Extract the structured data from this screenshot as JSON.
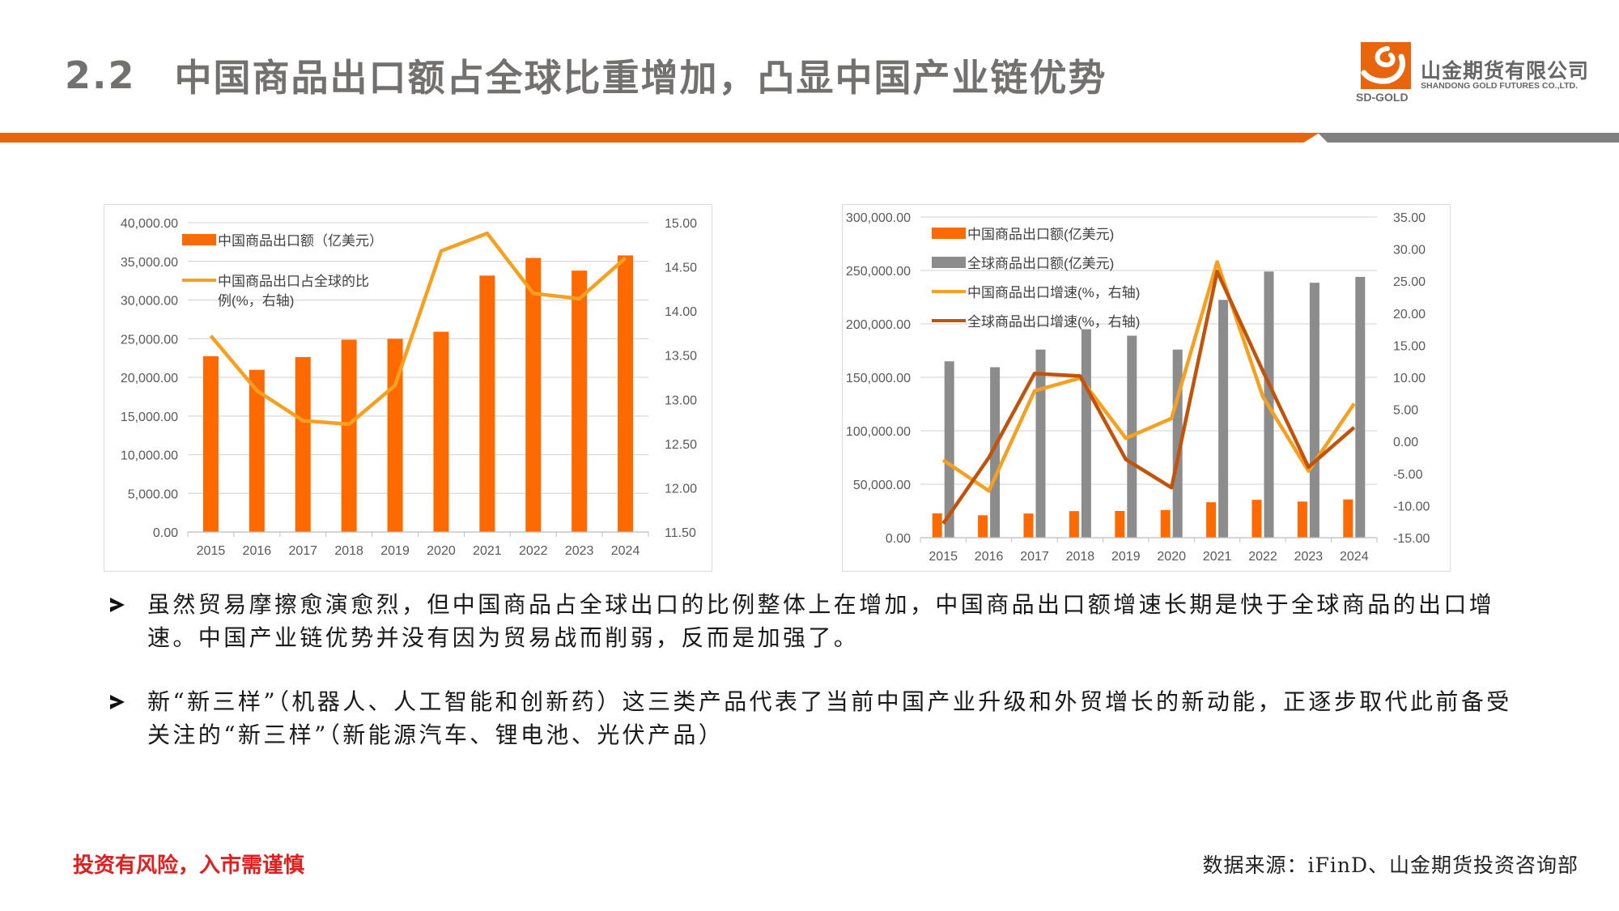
{
  "header": {
    "section_number": "2.2",
    "title": "中国商品出口额占全球比重增加，凸显中国产业链优势"
  },
  "logo": {
    "cn_name": "山金期货有限公司",
    "en_name": "SHANDONG GOLD FUTURES CO.,LTD.",
    "short_name": "SD-GOLD"
  },
  "colors": {
    "brand_orange": "#e8650e",
    "band_gray": "#808080",
    "bar_orange": "#ff6a00",
    "bar_gray": "#8c8c8c",
    "line_light_orange": "#f5a020",
    "line_dark_orange": "#c0540c",
    "risk_red": "#e02020"
  },
  "chart_data": [
    {
      "type": "bar+line",
      "title": "",
      "categories": [
        "2015",
        "2016",
        "2017",
        "2018",
        "2019",
        "2020",
        "2021",
        "2022",
        "2023",
        "2024"
      ],
      "series": [
        {
          "name": "中国商品出口额（亿美元）",
          "type": "bar",
          "axis": "left",
          "color": "#ff6a00",
          "values": [
            22735,
            20976,
            22633,
            24874,
            24990,
            25900,
            33160,
            35440,
            33800,
            35770
          ]
        },
        {
          "name": "中国商品出口占全球的比例(%，右轴)",
          "type": "line",
          "axis": "right",
          "color": "#f5a020",
          "values": [
            13.72,
            13.1,
            12.76,
            12.72,
            13.16,
            14.68,
            14.88,
            14.2,
            14.14,
            14.6
          ]
        }
      ],
      "left_axis": {
        "min": 0,
        "max": 40000,
        "step": 5000,
        "ticks": [
          "0.00",
          "5,000.00",
          "10,000.00",
          "15,000.00",
          "20,000.00",
          "25,000.00",
          "30,000.00",
          "35,000.00",
          "40,000.00"
        ]
      },
      "right_axis": {
        "min": 11.5,
        "max": 15.0,
        "step": 0.5,
        "ticks": [
          "11.50",
          "12.00",
          "12.50",
          "13.00",
          "13.50",
          "14.00",
          "14.50",
          "15.00"
        ]
      },
      "grid": true,
      "legend_position": "top-left inside"
    },
    {
      "type": "bar+line",
      "title": "",
      "categories": [
        "2015",
        "2016",
        "2017",
        "2018",
        "2019",
        "2020",
        "2021",
        "2022",
        "2023",
        "2024"
      ],
      "series": [
        {
          "name": "中国商品出口额(亿美元)",
          "type": "bar",
          "axis": "left",
          "color": "#ff6a00",
          "values": [
            22735,
            20976,
            22633,
            24874,
            24990,
            25900,
            33160,
            35440,
            33800,
            35770
          ]
        },
        {
          "name": "全球商品出口额(亿美元)",
          "type": "bar",
          "axis": "left",
          "color": "#8c8c8c",
          "values": [
            165000,
            159500,
            176000,
            195000,
            189000,
            176000,
            222500,
            249000,
            238500,
            244000
          ]
        },
        {
          "name": "中国商品出口增速(%，右轴)",
          "type": "line",
          "axis": "right",
          "color": "#f5a020",
          "values": [
            -2.9,
            -7.7,
            7.9,
            9.9,
            0.5,
            3.6,
            28.0,
            7.0,
            -4.6,
            5.9
          ]
        },
        {
          "name": "全球商品出口增速(%，右轴)",
          "type": "line",
          "axis": "right",
          "color": "#c0540c",
          "values": [
            -12.8,
            -2.5,
            10.6,
            10.2,
            -2.8,
            -7.2,
            26.5,
            11.0,
            -4.0,
            2.2
          ]
        }
      ],
      "left_axis": {
        "min": 0,
        "max": 300000,
        "step": 50000,
        "ticks": [
          "0.00",
          "50,000.00",
          "100,000.00",
          "150,000.00",
          "200,000.00",
          "250,000.00",
          "300,000.00"
        ]
      },
      "right_axis": {
        "min": -15,
        "max": 35,
        "step": 5,
        "ticks": [
          "-15.00",
          "-10.00",
          "-5.00",
          "0.00",
          "5.00",
          "10.00",
          "15.00",
          "20.00",
          "25.00",
          "30.00",
          "35.00"
        ]
      },
      "grid": true,
      "legend_position": "top-left inside"
    }
  ],
  "bullets": [
    "虽然贸易摩擦愈演愈烈，但中国商品占全球出口的比例整体上在增加，中国商品出口额增速长期是快于全球商品的出口增速。中国产业链优势并没有因为贸易战而削弱，反而是加强了。",
    "新“新三样”（机器人、人工智能和创新药）这三类产品代表了当前中国产业升级和外贸增长的新动能，正逐步取代此前备受关注的“新三样”（新能源汽车、锂电池、光伏产品）"
  ],
  "footer": {
    "risk_warning": "投资有风险，入市需谨慎",
    "data_source": "数据来源：iFinD、山金期货投资咨询部"
  }
}
